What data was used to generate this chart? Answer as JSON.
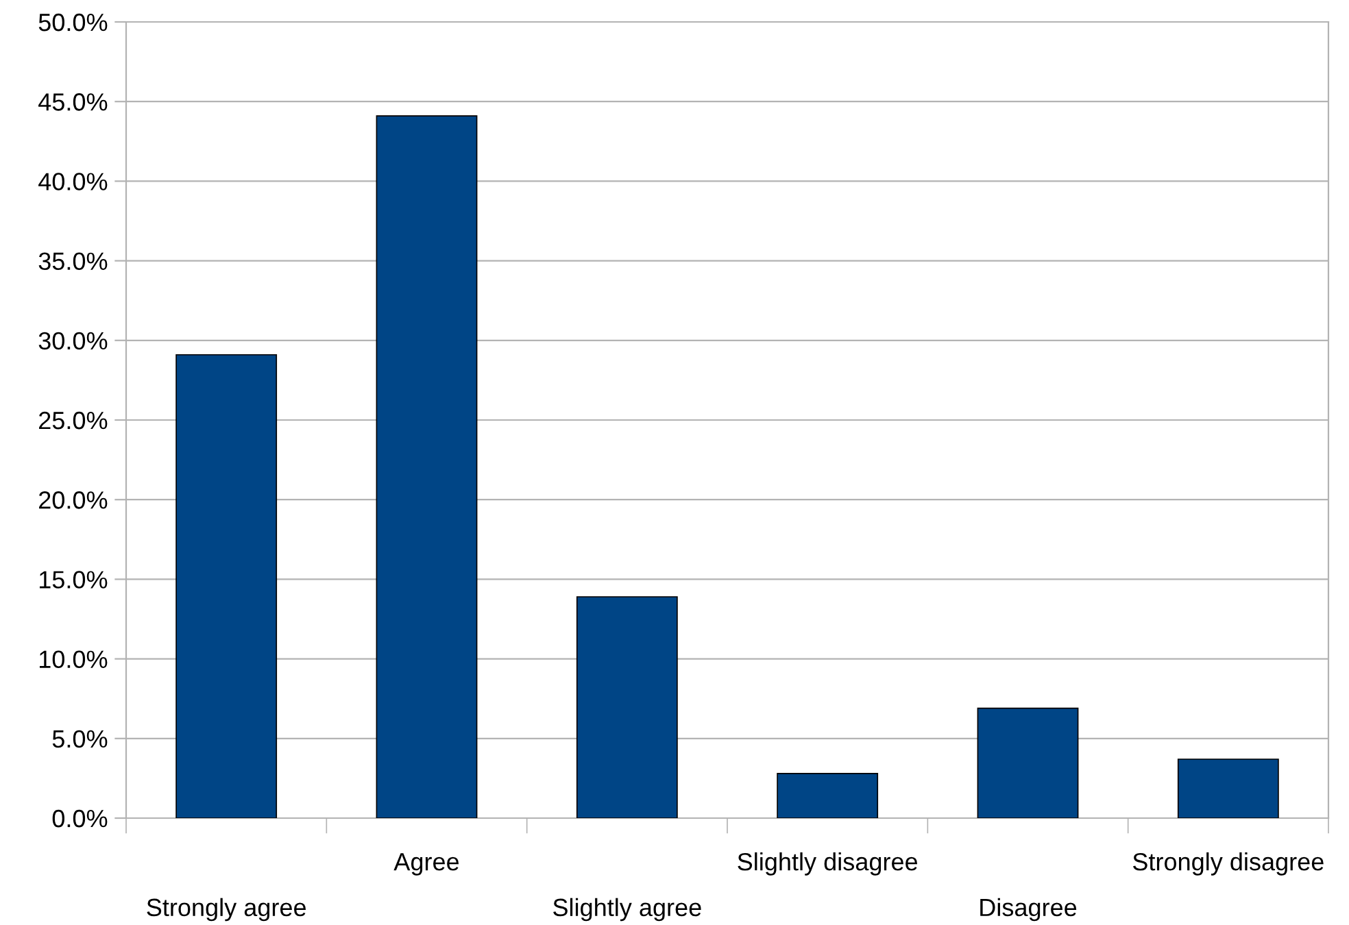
{
  "chart_data": {
    "type": "bar",
    "categories": [
      "Strongly agree",
      "Agree",
      "Slightly agree",
      "Slightly disagree",
      "Disagree",
      "Strongly disagree"
    ],
    "values": [
      29.1,
      44.1,
      13.9,
      2.8,
      6.9,
      3.7
    ],
    "color": "#004586",
    "ylim": [
      0,
      50
    ],
    "yticks": [
      {
        "value": 0,
        "label": "0.0%"
      },
      {
        "value": 5,
        "label": "5.0%"
      },
      {
        "value": 10,
        "label": "10.0%"
      },
      {
        "value": 15,
        "label": "15.0%"
      },
      {
        "value": 20,
        "label": "20.0%"
      },
      {
        "value": 25,
        "label": "25.0%"
      },
      {
        "value": 30,
        "label": "30.0%"
      },
      {
        "value": 35,
        "label": "35.0%"
      },
      {
        "value": 40,
        "label": "40.0%"
      },
      {
        "value": 45,
        "label": "45.0%"
      },
      {
        "value": 50,
        "label": "50.0%"
      }
    ],
    "grid": "y",
    "legend": false
  }
}
